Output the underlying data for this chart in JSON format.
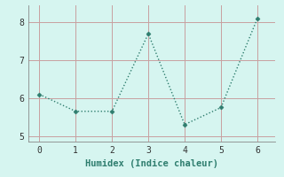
{
  "x": [
    0,
    1,
    2,
    3,
    4,
    5,
    6
  ],
  "y": [
    6.1,
    5.65,
    5.65,
    7.7,
    5.3,
    5.75,
    8.1
  ],
  "xlabel": "Humidex (Indice chaleur)",
  "line_color": "#2e7d6e",
  "marker_color": "#2e7d6e",
  "bg_color": "#d6f5f0",
  "grid_color": "#c8a0a0",
  "xlim": [
    -0.3,
    6.5
  ],
  "ylim": [
    4.85,
    8.45
  ],
  "xticks": [
    0,
    1,
    2,
    3,
    4,
    5,
    6
  ],
  "yticks": [
    5,
    6,
    7,
    8
  ],
  "label_fontsize": 7.5
}
